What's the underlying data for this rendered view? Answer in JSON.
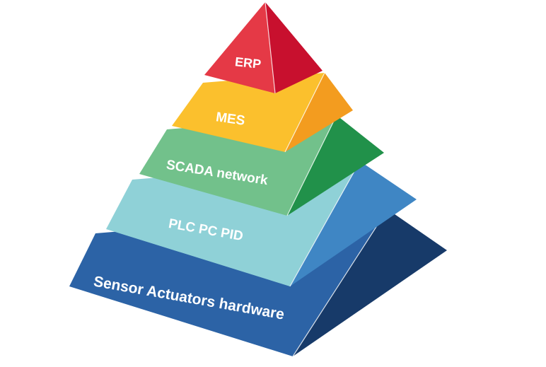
{
  "diagram": {
    "type": "pyramid",
    "layers": [
      {
        "label": "ERP",
        "front_color": "#e53946",
        "side_color": "#c8102e"
      },
      {
        "label": "MES",
        "front_color": "#fbc02d",
        "side_color": "#f39c1f"
      },
      {
        "label": "SCADA network",
        "front_color": "#72c18b",
        "side_color": "#21914a"
      },
      {
        "label": "PLC PC PID",
        "front_color": "#8fd1d7",
        "side_color": "#3f86c4"
      },
      {
        "label": "Sensor Actuators hardware",
        "front_color": "#2c63a6",
        "side_color": "#173a69"
      }
    ]
  }
}
